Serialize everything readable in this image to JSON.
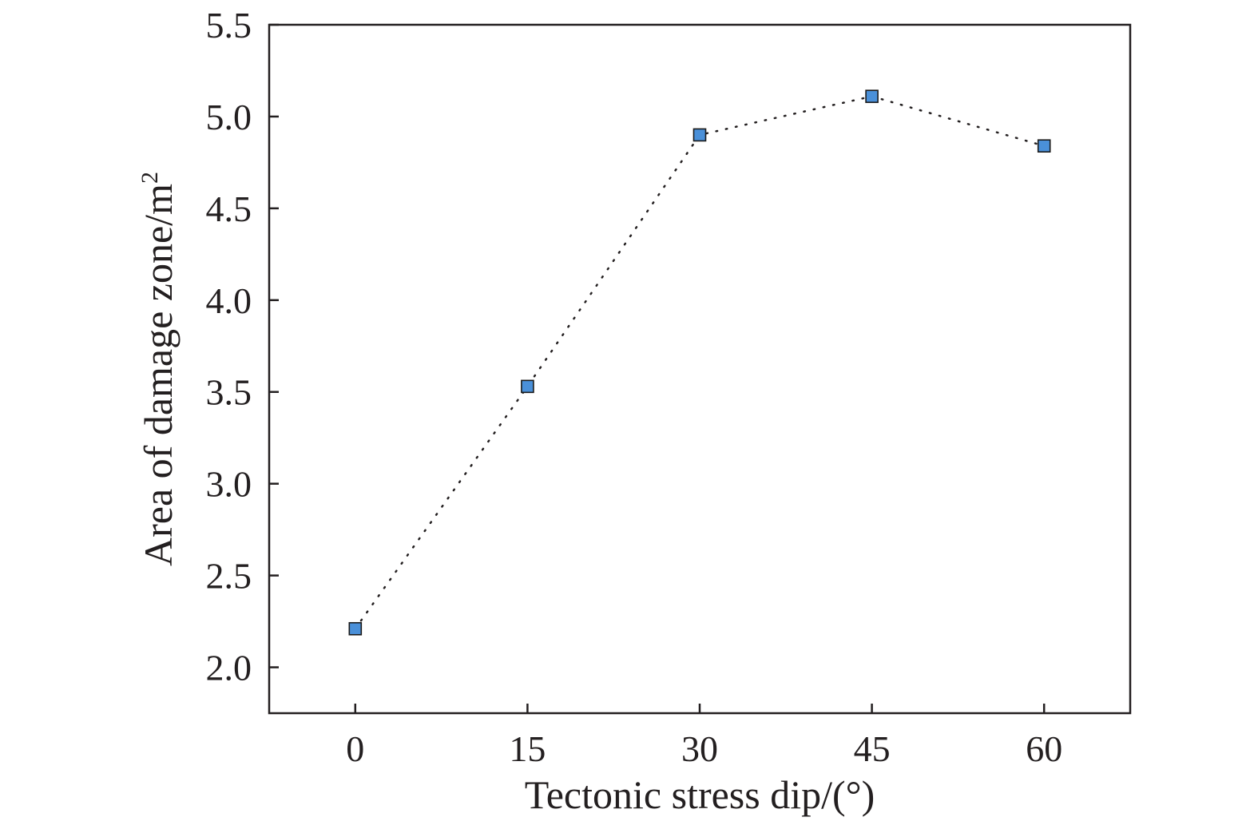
{
  "chart_data": {
    "type": "scatter",
    "xlabel": "Tectonic stress dip/(°)",
    "ylabel_base": "Area of damage zone/m",
    "ylabel_sup": "2",
    "x": [
      0,
      15,
      30,
      45,
      60
    ],
    "series": [
      {
        "values": [
          2.21,
          3.53,
          4.9,
          5.11,
          4.84
        ]
      }
    ],
    "xlim": [
      -7.5,
      67.5
    ],
    "ylim": [
      1.75,
      5.5
    ],
    "xticks": [
      0,
      15,
      30,
      45,
      60
    ],
    "xtick_labels": [
      "0",
      "15",
      "30",
      "45",
      "60"
    ],
    "yticks": [
      2.0,
      2.5,
      3.0,
      3.5,
      4.0,
      4.5,
      5.0,
      5.5
    ],
    "ytick_labels": [
      "2.0",
      "2.5",
      "3.0",
      "3.5",
      "4.0",
      "4.5",
      "5.0",
      "5.5"
    ],
    "line_style": "dotted",
    "marker": "square",
    "marker_color": "#4a90d9",
    "grid": false,
    "legend": "none"
  }
}
